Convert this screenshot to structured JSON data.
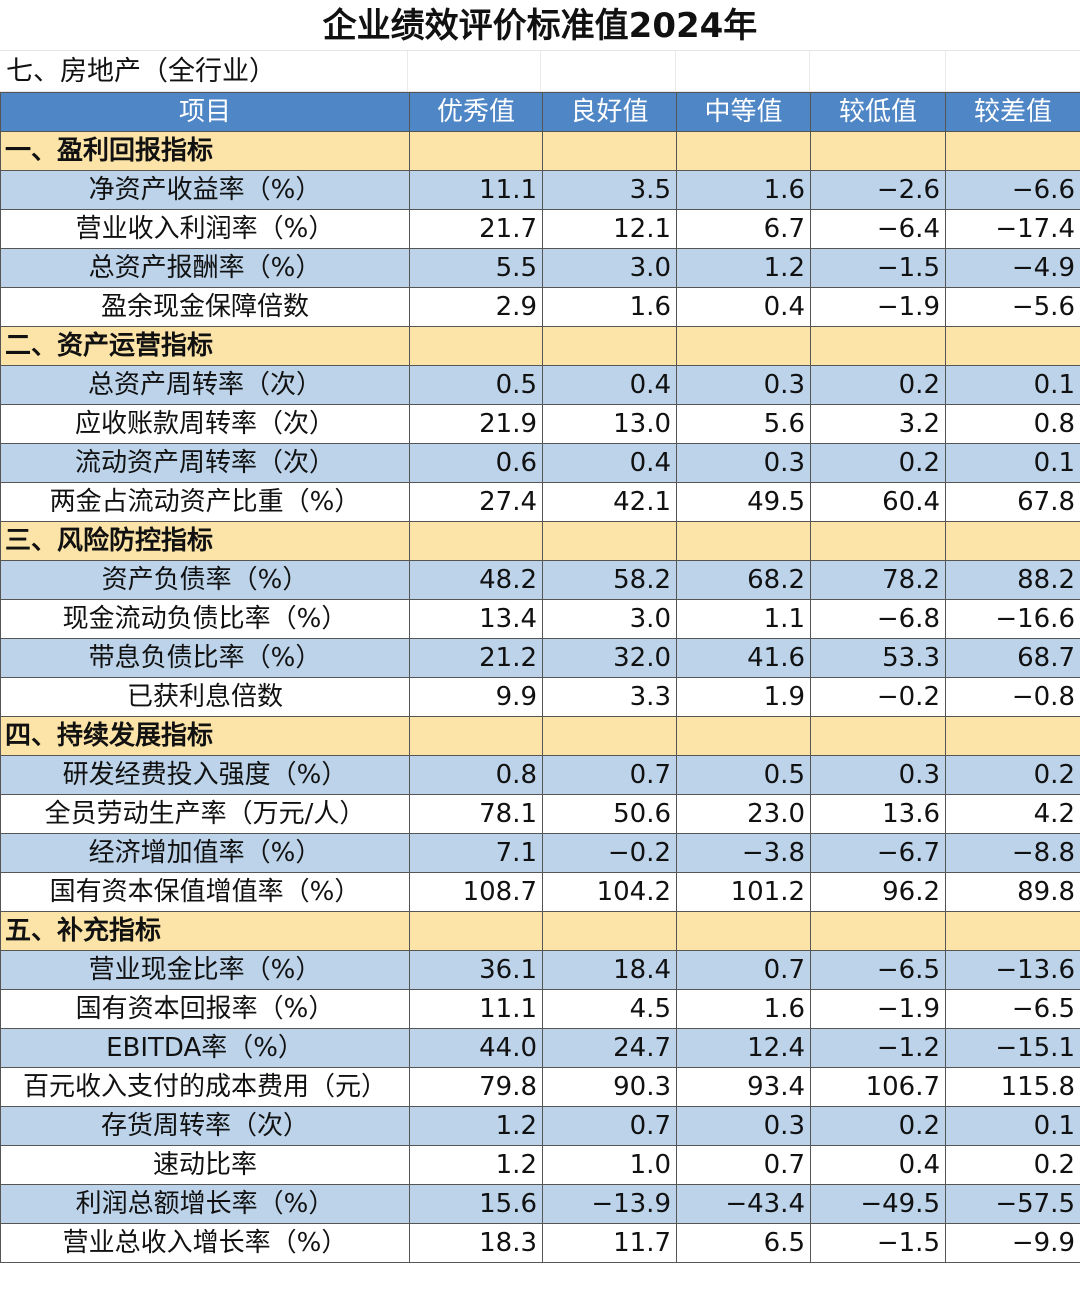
{
  "title": "企业绩效评价标准值2024年",
  "subtitle": "七、房地产（全行业）",
  "columns": [
    "项目",
    "优秀值",
    "良好值",
    "中等值",
    "较低值",
    "较差值"
  ],
  "sections": [
    {
      "name": "一、盈利回报指标",
      "rows": [
        {
          "label": "净资产收益率（%）",
          "values": [
            "11.1",
            "3.5",
            "1.6",
            "−2.6",
            "−6.6"
          ]
        },
        {
          "label": "营业收入利润率（%）",
          "values": [
            "21.7",
            "12.1",
            "6.7",
            "−6.4",
            "−17.4"
          ]
        },
        {
          "label": "总资产报酬率（%）",
          "values": [
            "5.5",
            "3.0",
            "1.2",
            "−1.5",
            "−4.9"
          ]
        },
        {
          "label": "盈余现金保障倍数",
          "values": [
            "2.9",
            "1.6",
            "0.4",
            "−1.9",
            "−5.6"
          ]
        }
      ]
    },
    {
      "name": "二、资产运营指标",
      "rows": [
        {
          "label": "总资产周转率（次）",
          "values": [
            "0.5",
            "0.4",
            "0.3",
            "0.2",
            "0.1"
          ]
        },
        {
          "label": "应收账款周转率（次）",
          "values": [
            "21.9",
            "13.0",
            "5.6",
            "3.2",
            "0.8"
          ]
        },
        {
          "label": "流动资产周转率（次）",
          "values": [
            "0.6",
            "0.4",
            "0.3",
            "0.2",
            "0.1"
          ]
        },
        {
          "label": "两金占流动资产比重（%）",
          "values": [
            "27.4",
            "42.1",
            "49.5",
            "60.4",
            "67.8"
          ]
        }
      ]
    },
    {
      "name": "三、风险防控指标",
      "rows": [
        {
          "label": "资产负债率（%）",
          "values": [
            "48.2",
            "58.2",
            "68.2",
            "78.2",
            "88.2"
          ]
        },
        {
          "label": "现金流动负债比率（%）",
          "values": [
            "13.4",
            "3.0",
            "1.1",
            "−6.8",
            "−16.6"
          ]
        },
        {
          "label": "带息负债比率（%）",
          "values": [
            "21.2",
            "32.0",
            "41.6",
            "53.3",
            "68.7"
          ]
        },
        {
          "label": "已获利息倍数",
          "values": [
            "9.9",
            "3.3",
            "1.9",
            "−0.2",
            "−0.8"
          ]
        }
      ]
    },
    {
      "name": "四、持续发展指标",
      "rows": [
        {
          "label": "研发经费投入强度（%）",
          "values": [
            "0.8",
            "0.7",
            "0.5",
            "0.3",
            "0.2"
          ]
        },
        {
          "label": "全员劳动生产率（万元/人）",
          "values": [
            "78.1",
            "50.6",
            "23.0",
            "13.6",
            "4.2"
          ]
        },
        {
          "label": "经济增加值率（%）",
          "values": [
            "7.1",
            "−0.2",
            "−3.8",
            "−6.7",
            "−8.8"
          ]
        },
        {
          "label": "国有资本保值增值率（%）",
          "values": [
            "108.7",
            "104.2",
            "101.2",
            "96.2",
            "89.8"
          ]
        }
      ]
    },
    {
      "name": "五、补充指标",
      "rows": [
        {
          "label": "营业现金比率（%）",
          "values": [
            "36.1",
            "18.4",
            "0.7",
            "−6.5",
            "−13.6"
          ]
        },
        {
          "label": "国有资本回报率（%）",
          "values": [
            "11.1",
            "4.5",
            "1.6",
            "−1.9",
            "−6.5"
          ]
        },
        {
          "label": "EBITDA率（%）",
          "values": [
            "44.0",
            "24.7",
            "12.4",
            "−1.2",
            "−15.1"
          ]
        },
        {
          "label": "百元收入支付的成本费用（元）",
          "values": [
            "79.8",
            "90.3",
            "93.4",
            "106.7",
            "115.8"
          ]
        },
        {
          "label": "存货周转率（次）",
          "values": [
            "1.2",
            "0.7",
            "0.3",
            "0.2",
            "0.1"
          ]
        },
        {
          "label": "速动比率",
          "values": [
            "1.2",
            "1.0",
            "0.7",
            "0.4",
            "0.2"
          ]
        },
        {
          "label": "利润总额增长率（%）",
          "values": [
            "15.6",
            "−13.9",
            "−43.4",
            "−49.5",
            "−57.5"
          ]
        },
        {
          "label": "营业总收入增长率（%）",
          "values": [
            "18.3",
            "11.7",
            "6.5",
            "−1.5",
            "−9.9"
          ]
        }
      ]
    }
  ]
}
